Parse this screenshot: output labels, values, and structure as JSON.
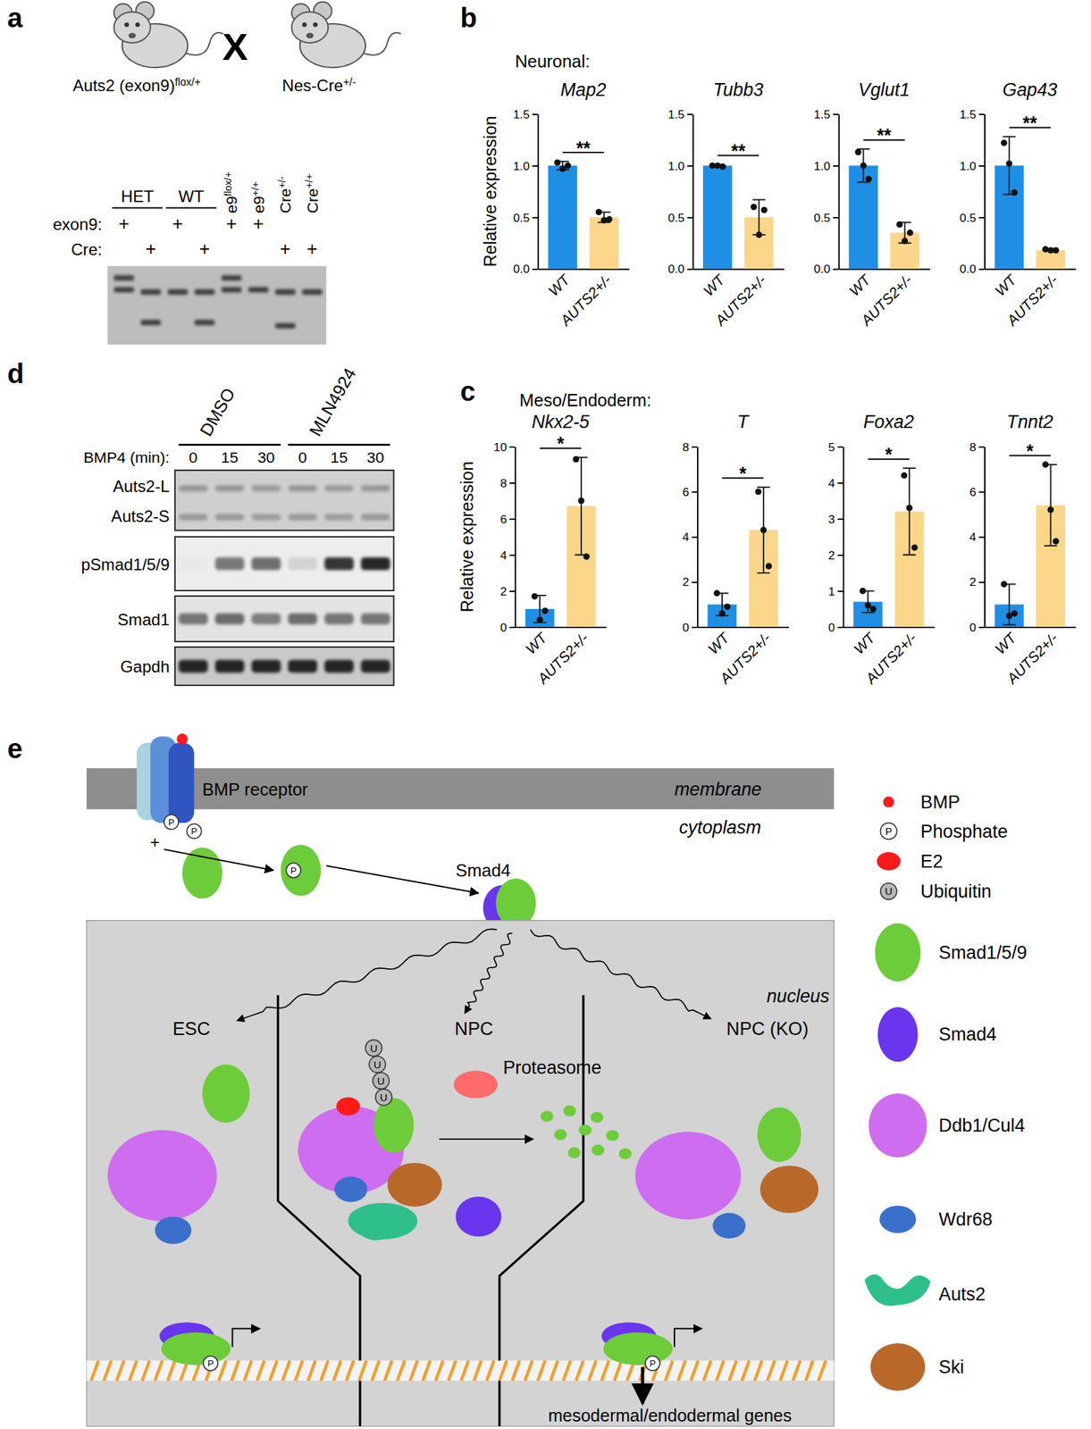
{
  "panel_labels": [
    "a",
    "b",
    "c",
    "d",
    "e"
  ],
  "panel_a": {
    "cross": [
      {
        "name": "Auts2 (exon9)",
        "sup": "flox/+"
      },
      {
        "name": "Nes-Cre",
        "sup": "+/-"
      }
    ],
    "cross_symbol": "X",
    "columns": [
      {
        "text": "HET",
        "span": 2,
        "underline": true
      },
      {
        "text": "WT",
        "span": 2,
        "underline": true
      },
      {
        "text": "e9",
        "sup": "flox/+",
        "span": 1
      },
      {
        "text": "e9",
        "sup": "+/+",
        "span": 1
      },
      {
        "text": "Cre",
        "sup": "+/-",
        "span": 1
      },
      {
        "text": "Cre",
        "sup": "+/+",
        "span": 1
      }
    ],
    "rows": [
      {
        "label": "exon9:",
        "marks": [
          "+",
          null,
          "+",
          null,
          "+",
          "+",
          null,
          null
        ]
      },
      {
        "label": "Cre:",
        "marks": [
          null,
          "+",
          null,
          "+",
          null,
          null,
          "+",
          "+"
        ]
      }
    ]
  },
  "panel_b": {
    "header": "Neuronal:"
  },
  "panel_c": {
    "header": "Meso/Endoderm:"
  },
  "chart_data": [
    {
      "type": "bar",
      "title": "Map2",
      "ylabel": "Relative expression",
      "categories": [
        "WT",
        "AUTS2+/-"
      ],
      "values": [
        1.0,
        0.5
      ],
      "errors": [
        0.04,
        0.05
      ],
      "points": [
        [
          1.03,
          0.97,
          1.0
        ],
        [
          0.55,
          0.47,
          0.48
        ]
      ],
      "colors": [
        "#1f8fe5",
        "#fcd68a"
      ],
      "ylim": [
        0,
        1.5
      ],
      "yticks": [
        {
          "value": 0,
          "label": "0.0"
        },
        0.5,
        {
          "value": 1,
          "label": "1.0"
        },
        1.5
      ],
      "significance": "**"
    },
    {
      "type": "bar",
      "title": "Tubb3",
      "categories": [
        "WT",
        "AUTS2+/-"
      ],
      "values": [
        1.0,
        0.5
      ],
      "errors": [
        0.01,
        0.17
      ],
      "points": [
        [
          1.0,
          1.0,
          0.99
        ],
        [
          0.6,
          0.33,
          0.57
        ]
      ],
      "colors": [
        "#1f8fe5",
        "#fcd68a"
      ],
      "ylim": [
        0,
        1.5
      ],
      "yticks": [
        {
          "value": 0,
          "label": "0.0"
        },
        0.5,
        {
          "value": 1,
          "label": "1.0"
        },
        1.5
      ],
      "significance": "**"
    },
    {
      "type": "bar",
      "title": "Vglut1",
      "categories": [
        "WT",
        "AUTS2+/-"
      ],
      "values": [
        1.0,
        0.35
      ],
      "errors": [
        0.16,
        0.1
      ],
      "points": [
        [
          1.13,
          1.0,
          0.87
        ],
        [
          0.43,
          0.27,
          0.35
        ]
      ],
      "colors": [
        "#1f8fe5",
        "#fcd68a"
      ],
      "ylim": [
        0,
        1.5
      ],
      "yticks": [
        {
          "value": 0,
          "label": "0.0"
        },
        0.5,
        {
          "value": 1,
          "label": "1.0"
        },
        1.5
      ],
      "significance": "**"
    },
    {
      "type": "bar",
      "title": "Gap43",
      "categories": [
        "WT",
        "AUTS2+/-"
      ],
      "values": [
        1.0,
        0.18
      ],
      "errors": [
        0.28,
        0.01
      ],
      "points": [
        [
          1.22,
          1.02,
          0.74
        ],
        [
          0.19,
          0.18,
          0.18
        ]
      ],
      "colors": [
        "#1f8fe5",
        "#fcd68a"
      ],
      "ylim": [
        0,
        1.5
      ],
      "yticks": [
        {
          "value": 0,
          "label": "0.0"
        },
        0.5,
        {
          "value": 1,
          "label": "1.0"
        },
        1.5
      ],
      "significance": "**"
    },
    {
      "type": "bar",
      "title": "Nkx2-5",
      "ylabel": "Relative expression",
      "categories": [
        "WT",
        "AUTS2+/-"
      ],
      "values": [
        1.0,
        6.7
      ],
      "errors": [
        0.75,
        2.7
      ],
      "points": [
        [
          1.7,
          0.4,
          0.9
        ],
        [
          9.3,
          7.0,
          3.9
        ]
      ],
      "colors": [
        "#1f8fe5",
        "#fcd68a"
      ],
      "ylim": [
        0,
        10
      ],
      "yticks": [
        0,
        2,
        4,
        6,
        8,
        10
      ],
      "significance": "*"
    },
    {
      "type": "bar",
      "title": "T",
      "categories": [
        "WT",
        "AUTS2+/-"
      ],
      "values": [
        1.0,
        4.3
      ],
      "errors": [
        0.5,
        1.9
      ],
      "points": [
        [
          1.5,
          0.6,
          0.9
        ],
        [
          6.0,
          4.3,
          2.7
        ]
      ],
      "colors": [
        "#1f8fe5",
        "#fcd68a"
      ],
      "ylim": [
        0,
        8
      ],
      "yticks": [
        0,
        2,
        4,
        6,
        8
      ],
      "significance": "*"
    },
    {
      "type": "bar",
      "title": "Foxa2",
      "categories": [
        "WT",
        "AUTS2+/-"
      ],
      "values": [
        0.7,
        3.2
      ],
      "errors": [
        0.3,
        1.2
      ],
      "points": [
        [
          1.0,
          0.6,
          0.5
        ],
        [
          4.2,
          3.3,
          2.2
        ]
      ],
      "colors": [
        "#1f8fe5",
        "#fcd68a"
      ],
      "ylim": [
        0,
        5
      ],
      "yticks": [
        0,
        1,
        2,
        3,
        4,
        5
      ],
      "significance": "*"
    },
    {
      "type": "bar",
      "title": "Tnnt2",
      "categories": [
        "WT",
        "AUTS2+/-"
      ],
      "values": [
        1.0,
        5.4
      ],
      "errors": [
        0.9,
        1.8
      ],
      "points": [
        [
          1.9,
          0.5,
          0.6
        ],
        [
          7.2,
          5.2,
          3.8
        ]
      ],
      "colors": [
        "#1f8fe5",
        "#fcd68a"
      ],
      "ylim": [
        0,
        8
      ],
      "yticks": [
        0,
        2,
        4,
        6,
        8
      ],
      "significance": "*"
    }
  ],
  "panel_d": {
    "treatments": [
      {
        "label": "DMSO",
        "times": [
          0,
          15,
          30
        ]
      },
      {
        "label": "MLN4924",
        "times": [
          0,
          15,
          30
        ]
      }
    ],
    "time_label": "BMP4 (min):",
    "rows": [
      {
        "labels": [
          "Auts2-L",
          "Auts2-S"
        ]
      },
      {
        "labels": [
          "pSmad1/5/9"
        ]
      },
      {
        "labels": [
          "Smad1"
        ]
      },
      {
        "labels": [
          "Gapdh"
        ]
      }
    ]
  },
  "panel_e": {
    "receptor": "BMP receptor",
    "membrane": "membrane",
    "cytoplasm": "cytoplasm",
    "smad4": "Smad4",
    "nucleus": "nucleus",
    "contexts": [
      "ESC",
      "NPC",
      "NPC (KO)"
    ],
    "proteasome": "Proteasome",
    "genes": "mesodermal/endodermal genes",
    "phosphate_symbol": "P",
    "ubiquitin_symbol": "U",
    "plus": "+",
    "legend": [
      {
        "label": "BMP",
        "color": "#ff1a1a"
      },
      {
        "label": "Phosphate",
        "color": "#ffffff"
      },
      {
        "label": "E2",
        "color": "#ff1a1a"
      },
      {
        "label": "Ubiquitin",
        "color": "#b8b8b8"
      },
      {
        "label": "Smad1/5/9",
        "color": "#6dcc3a"
      },
      {
        "label": "Smad4",
        "color": "#6a35ee"
      },
      {
        "label": "Ddb1/Cul4",
        "color": "#cf6df0"
      },
      {
        "label": "Wdr68",
        "color": "#3a6fcc"
      },
      {
        "label": "Auts2",
        "color": "#2fbf8a"
      },
      {
        "label": "Ski",
        "color": "#b8692a"
      }
    ]
  }
}
